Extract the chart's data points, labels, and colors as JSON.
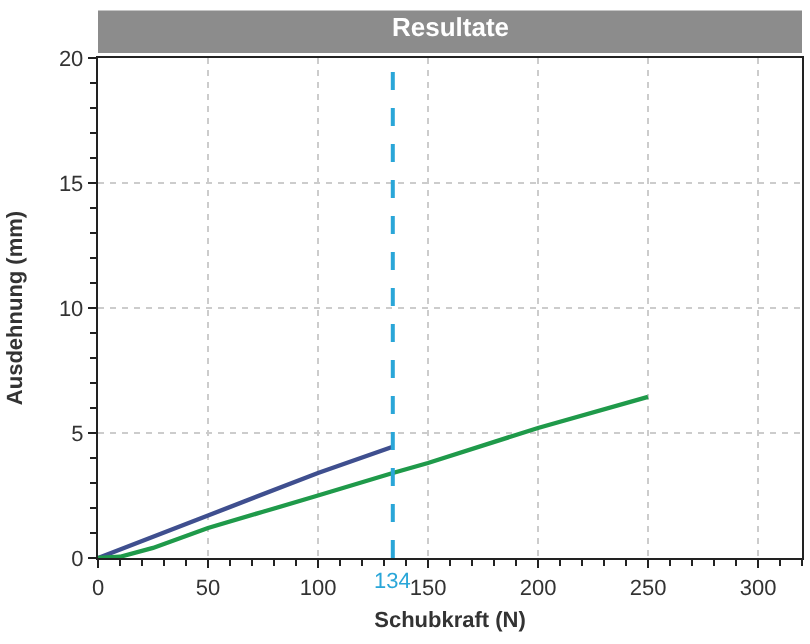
{
  "chart_data": {
    "type": "line",
    "title": "Resultate",
    "xlabel": "Schubkraft (N)",
    "ylabel": "Ausdehnung (mm)",
    "xlim": [
      0,
      320
    ],
    "xticks": [
      0,
      50,
      100,
      150,
      200,
      250,
      300
    ],
    "ylim": [
      0,
      20
    ],
    "yticks": [
      0,
      5,
      10,
      15,
      20
    ],
    "grid": true,
    "line_style": "solid",
    "marker": "none",
    "series": [
      {
        "color": "#3f4f8f",
        "x": [
          0,
          50,
          100,
          134
        ],
        "values": [
          0,
          1.7,
          3.4,
          4.45
        ]
      },
      {
        "color": "#1f9a4a",
        "x": [
          0,
          10,
          25,
          50,
          75,
          100,
          134,
          150,
          200,
          250
        ],
        "values": [
          0,
          0.05,
          0.4,
          1.2,
          1.85,
          2.5,
          3.4,
          3.8,
          5.2,
          6.45
        ]
      }
    ],
    "ref_lines": [
      {
        "axis": "x",
        "value": 134,
        "label": "134",
        "color": "#2aa6d8",
        "line_style": "dashed"
      }
    ]
  }
}
